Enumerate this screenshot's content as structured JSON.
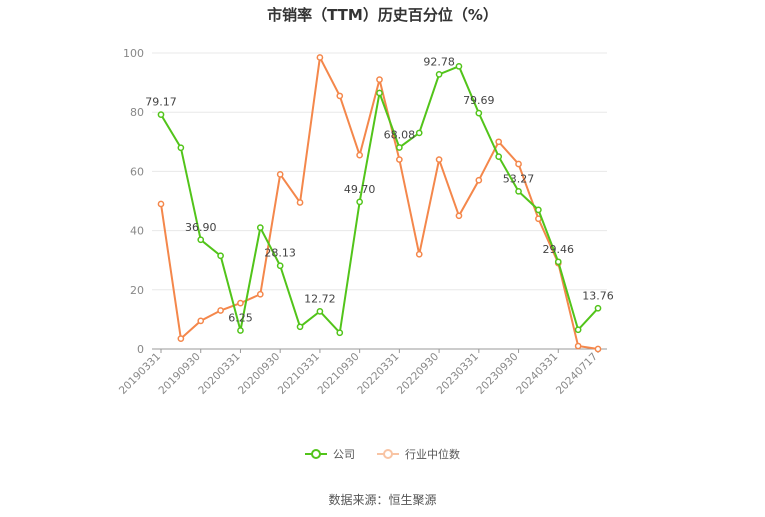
{
  "chart_data": {
    "type": "line",
    "title": "市销率（TTM）历史百分位（%）",
    "x": [
      "20190331",
      "20190630",
      "20190930",
      "20191231",
      "20200331",
      "20200630",
      "20200930",
      "20201231",
      "20210331",
      "20210630",
      "20210930",
      "20211231",
      "20220331",
      "20220630",
      "20220930",
      "20221231",
      "20230331",
      "20230630",
      "20230930",
      "20231231",
      "20240331",
      "20240630",
      "20240717"
    ],
    "x_tick_labels": [
      "20190331",
      "20190930",
      "20200331",
      "20200930",
      "20210331",
      "20210930",
      "20220331",
      "20220930",
      "20230331",
      "20230930",
      "20240331",
      "20240717"
    ],
    "ylim": [
      0,
      100
    ],
    "y_ticks": [
      0,
      20,
      40,
      60,
      80,
      100
    ],
    "grid": true,
    "legend_position": "bottom",
    "series": [
      {
        "name": "公司",
        "color": "#52c41a",
        "values": [
          79.17,
          68,
          36.9,
          31.5,
          6.25,
          41,
          28.13,
          7.5,
          12.72,
          5.5,
          49.7,
          86.5,
          68.08,
          73,
          92.78,
          95.5,
          79.69,
          65,
          53.27,
          47,
          29.46,
          6.5,
          13.76
        ],
        "data_labels": {
          "0": "79.17",
          "2": "36.90",
          "4": "6.25",
          "6": "28.13",
          "8": "12.72",
          "10": "49.70",
          "12": "68.08",
          "14": "92.78",
          "16": "79.69",
          "18": "53.27",
          "20": "29.46",
          "22": "13.76"
        }
      },
      {
        "name": "行业中位数",
        "color": "#f4874b",
        "values": [
          49,
          3.5,
          9.5,
          13,
          15.5,
          18.5,
          59,
          49.5,
          98.5,
          85.5,
          65.5,
          91,
          64,
          32,
          64,
          45,
          57,
          70,
          62.5,
          44,
          29,
          1,
          0
        ]
      }
    ]
  },
  "source_text": "数据来源：恒生聚源"
}
